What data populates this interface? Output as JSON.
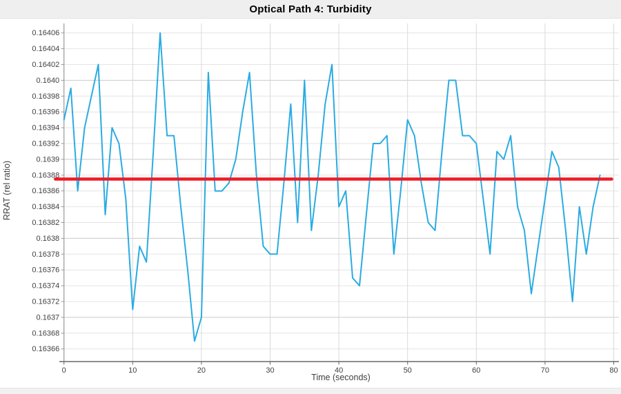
{
  "title": "Optical Path 4: Turbidity",
  "colors": {
    "series_blue": "#29abe2",
    "mean_red": "#ed1c24",
    "grid_minor": "#e4e4e4",
    "grid_major": "#c9c9c9",
    "grid_vertical": "#d9d9d9",
    "axis_line": "#999999",
    "axis_bottom": "#666666",
    "tick_text": "#404040",
    "title_bar_bg": "#efefef",
    "footer_bg": "#f1f1f1",
    "plot_bg": "#ffffff"
  },
  "chart_data": {
    "type": "line",
    "title": "Optical Path 4: Turbidity",
    "xlabel": "Time (seconds)",
    "ylabel": "RRAT (rel ratio)",
    "xlim": [
      0,
      80
    ],
    "ylim": [
      0.16366,
      0.16406
    ],
    "grid": true,
    "legend": "none",
    "x_ticks": [
      0,
      10,
      20,
      30,
      40,
      50,
      60,
      70,
      80
    ],
    "x_tick_labels": [
      "0",
      "10",
      "20",
      "30",
      "40",
      "50",
      "60",
      "70",
      "80"
    ],
    "y_tick_step": 2e-05,
    "y_tick_labels_bottom_to_top": [
      "0.16366",
      "0.16368",
      "0.1637",
      "0.16372",
      "0.16374",
      "0.16376",
      "0.16378",
      "0.1638",
      "0.16382",
      "0.16384",
      "0.16386",
      "0.16388",
      "0.1639",
      "0.16392",
      "0.16394",
      "0.16396",
      "0.16398",
      "0.1640",
      "0.16402",
      "0.16404",
      "0.16406"
    ],
    "major_y_labels": [
      "0.1637",
      "0.1638",
      "0.1639",
      "0.1640"
    ],
    "series": [
      {
        "name": "turbidity-rrat",
        "color": "#29abe2",
        "line_width": 2,
        "x_start": 0,
        "x_step": 1,
        "values": [
          0.16395,
          0.16399,
          0.16386,
          0.16394,
          0.16398,
          0.16402,
          0.16383,
          0.16394,
          0.16392,
          0.16385,
          0.16371,
          0.16379,
          0.16377,
          0.16391,
          0.16406,
          0.16393,
          0.16393,
          0.16384,
          0.16376,
          0.16367,
          0.1637,
          0.16401,
          0.16386,
          0.16386,
          0.16387,
          0.1639,
          0.16396,
          0.16401,
          0.16388,
          0.16379,
          0.16378,
          0.16378,
          0.16387,
          0.16397,
          0.16382,
          0.164,
          0.16381,
          0.16388,
          0.16397,
          0.16402,
          0.16384,
          0.16386,
          0.16375,
          0.16374,
          0.16383,
          0.16392,
          0.16392,
          0.16393,
          0.16378,
          0.16386,
          0.16395,
          0.16393,
          0.16387,
          0.16382,
          0.16381,
          0.16391,
          0.164,
          0.164,
          0.16393,
          0.16393,
          0.16392,
          0.16385,
          0.16378,
          0.16391,
          0.1639,
          0.16393,
          0.16384,
          0.16381,
          0.16373,
          0.16379,
          0.16385,
          0.16391,
          0.16389,
          0.16381,
          0.16372,
          0.16384,
          0.16378,
          0.16384,
          0.16388
        ]
      },
      {
        "name": "mean-line",
        "type": "hline",
        "color": "#ed1c24",
        "line_width": 4.5,
        "value": 0.163875,
        "x_start": -1.25,
        "x_end": 79.7
      }
    ]
  }
}
